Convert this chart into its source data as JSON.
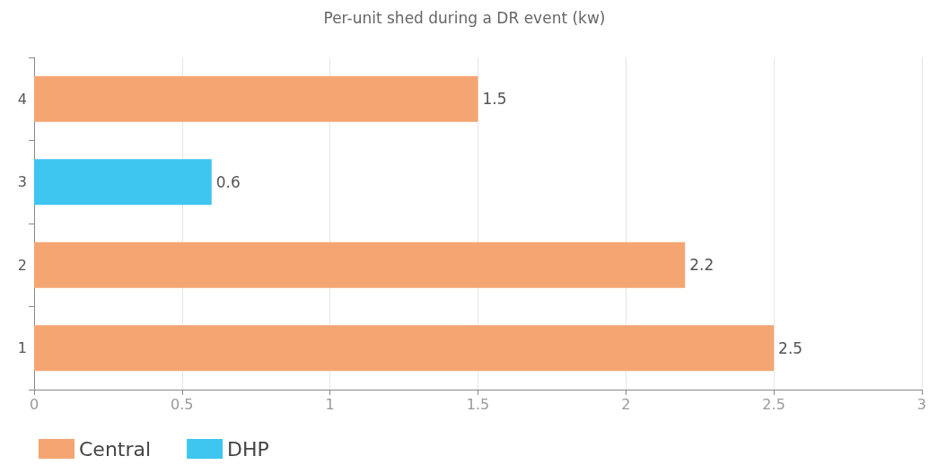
{
  "chart_data": {
    "type": "bar",
    "orientation": "horizontal",
    "title": "Per-unit shed during a DR event (kw)",
    "categories": [
      "4",
      "3",
      "2",
      "1"
    ],
    "series": [
      {
        "name": "Central",
        "color": "#f5a572",
        "values": [
          1.5,
          null,
          2.2,
          2.5
        ]
      },
      {
        "name": "DHP",
        "color": "#3ec6f0",
        "values": [
          null,
          0.6,
          null,
          null
        ]
      }
    ],
    "xlim": [
      0,
      3
    ],
    "xticks": [
      0,
      0.5,
      1,
      1.5,
      2,
      2.5,
      3
    ],
    "grid": "x",
    "data_labels": true,
    "legend": "bottom left"
  }
}
